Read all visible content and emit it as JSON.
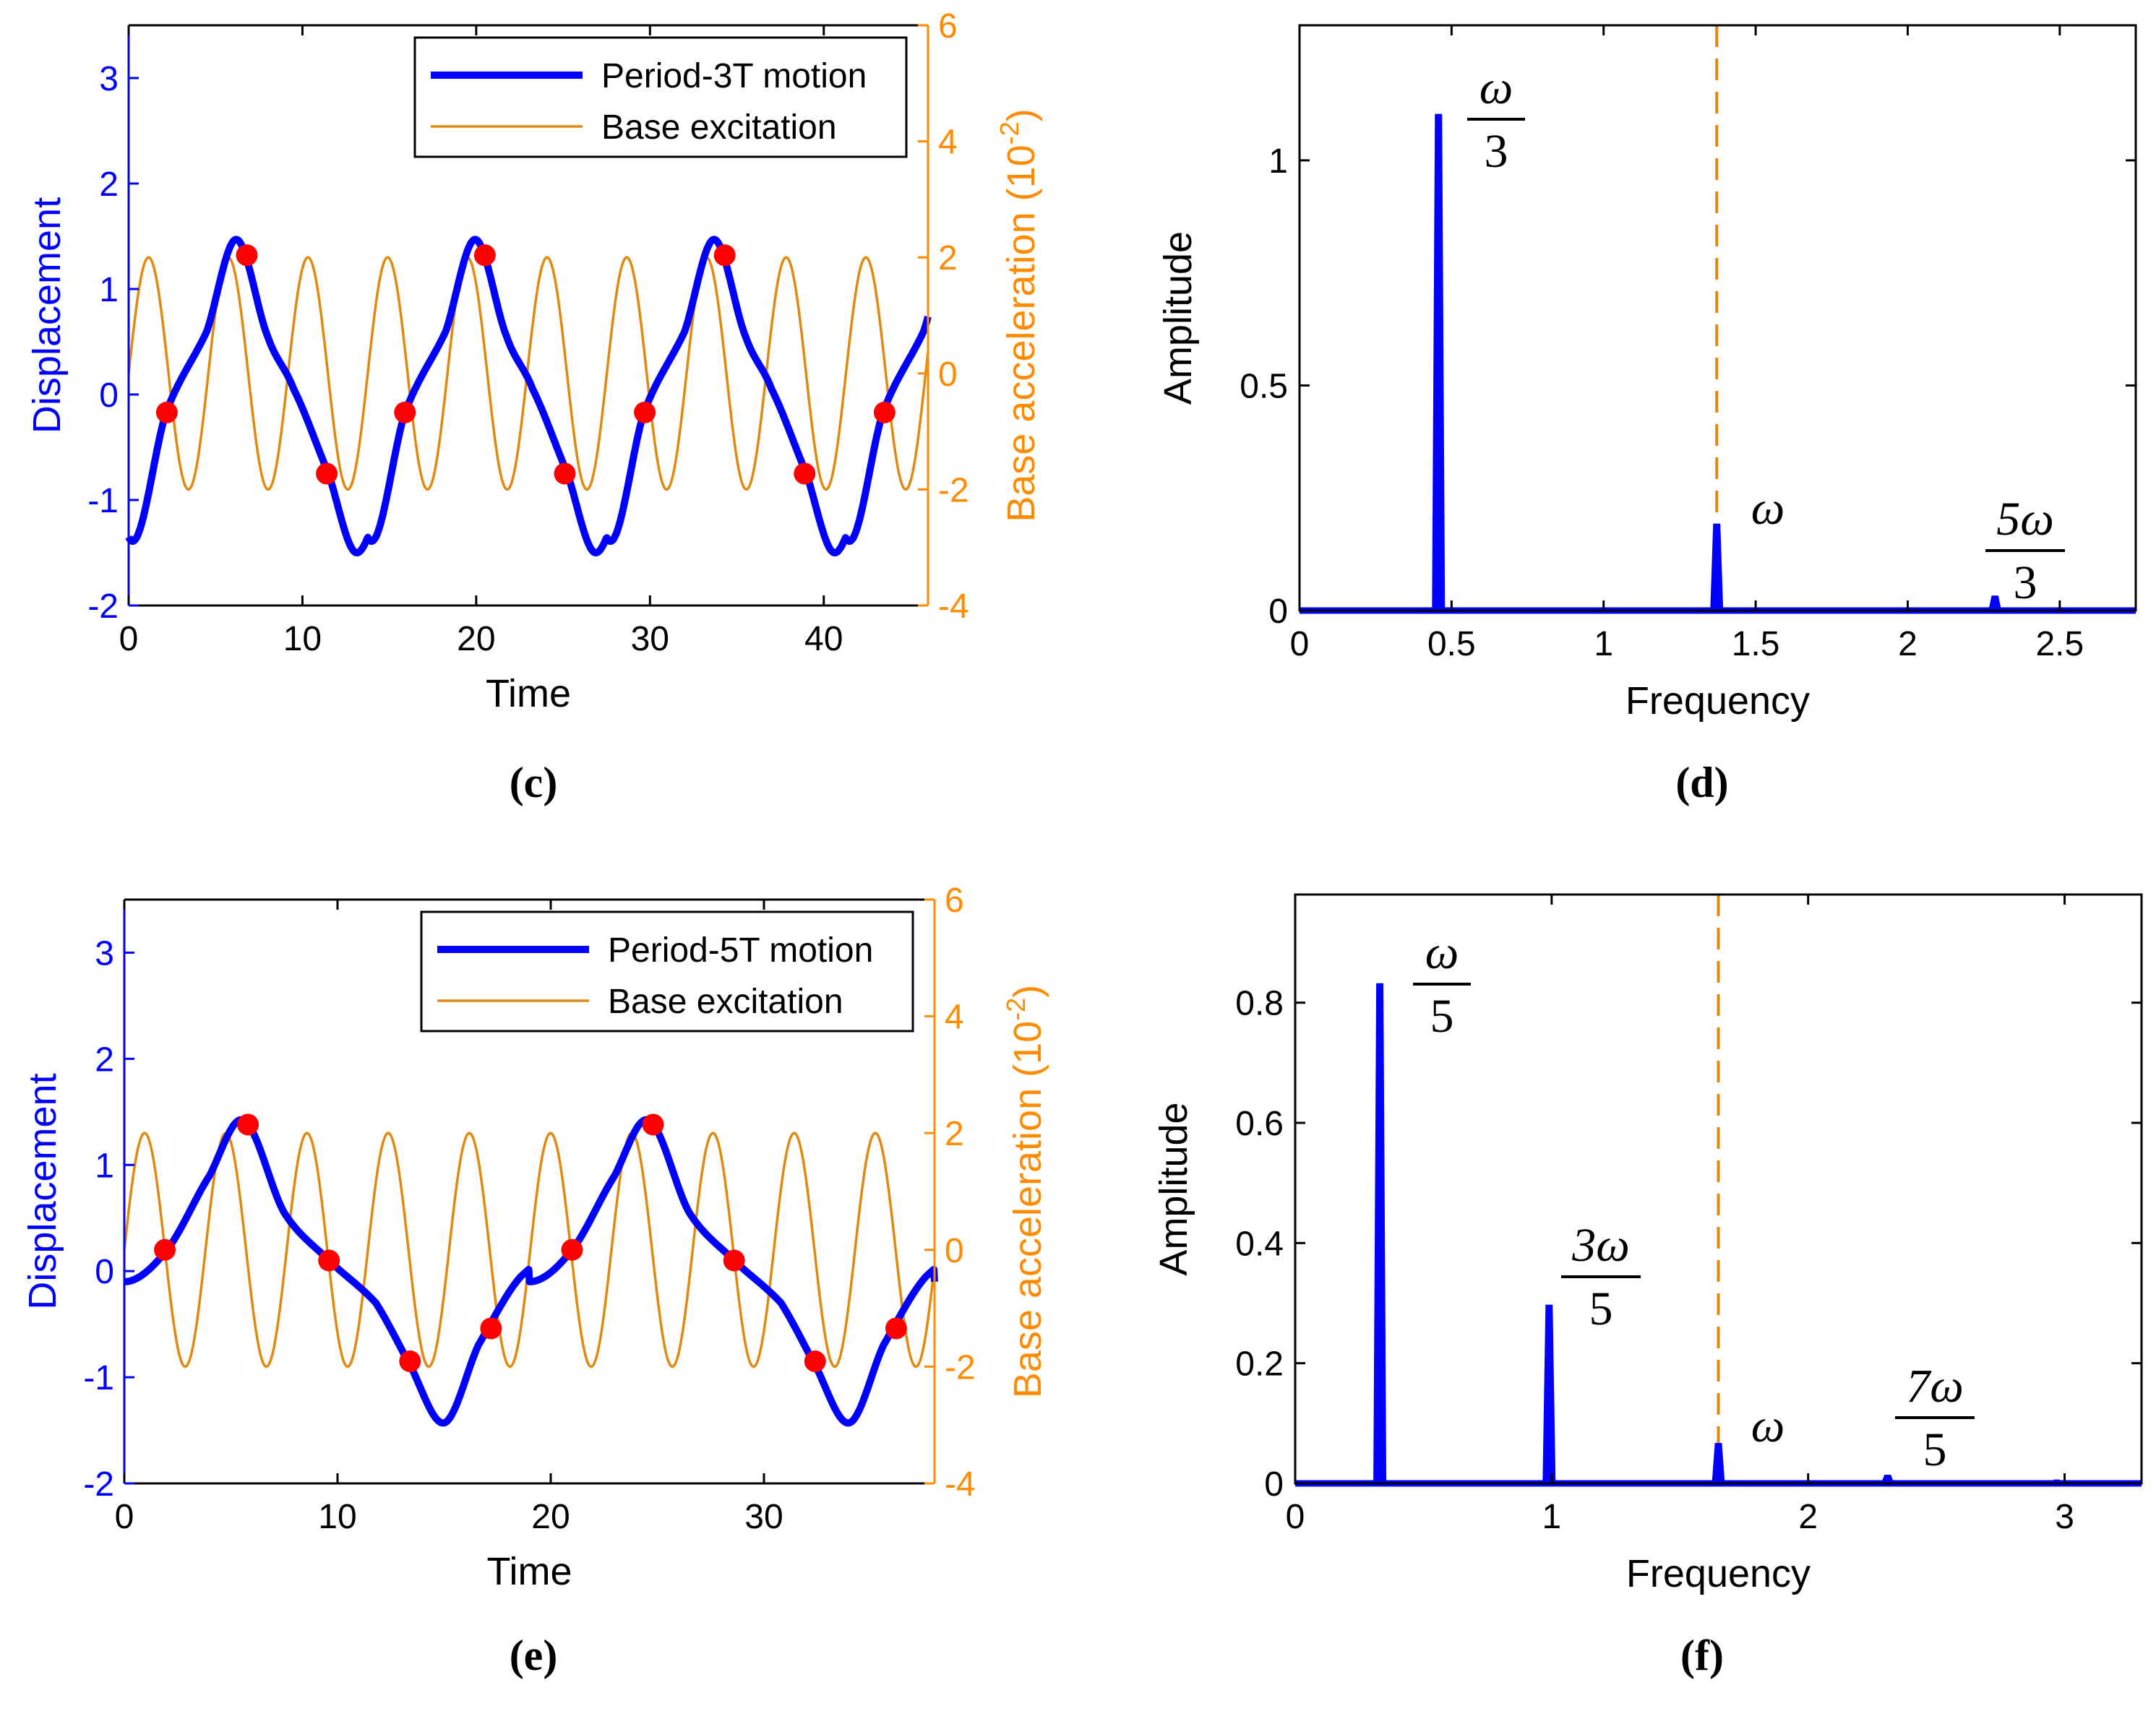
{
  "colors": {
    "displacement": "#0000FF",
    "excitation": "#E08A10",
    "excitation_axis": "#FF8C00",
    "poincare": "#FF0000",
    "dashed_line": "#E08A10",
    "frame": "#000000"
  },
  "chart_data": [
    {
      "id": "c",
      "type": "line",
      "caption": "(c)",
      "xlabel": "Time",
      "ylabel": "Displacement",
      "y2label": "Base acceleration (10",
      "y2label_exp": "-2",
      "y2label_close": ")",
      "xlim": [
        0,
        46
      ],
      "ylim": [
        -2,
        3.5
      ],
      "y2lim": [
        -4,
        6
      ],
      "xticks": [
        0,
        10,
        20,
        30,
        40
      ],
      "yticks": [
        -2,
        -1,
        0,
        1,
        2,
        3
      ],
      "y2ticks": [
        -4,
        -2,
        0,
        2,
        4,
        6
      ],
      "legend": [
        "Period-3T motion",
        "Base excitation"
      ],
      "legend_position": "top-right",
      "excitation": {
        "amplitude": 2.0,
        "omega": 1.37,
        "phase": 0.0
      },
      "displacement_samples": {
        "t": [
          0,
          2.2,
          4.5,
          6.2,
          8.0,
          9.5,
          11.5,
          13.1,
          14.8,
          16.1,
          18.0,
          19.9
        ],
        "y": [
          -1.35,
          -0.15,
          0.6,
          1.47,
          0.55,
          0.05,
          -0.75,
          -1.5,
          -0.85,
          -0.15,
          0.6,
          1.47
        ]
      },
      "period": 13.75,
      "poincare_points": {
        "t": [
          2.2,
          6.8,
          11.4,
          15.9,
          20.5,
          25.1,
          29.7,
          34.3,
          38.9,
          43.5
        ],
        "y": [
          -0.17,
          1.32,
          -0.75,
          -0.17,
          1.32,
          -0.75,
          -0.17,
          1.32,
          -0.75,
          -0.17
        ]
      }
    },
    {
      "id": "d",
      "type": "line",
      "caption": "(d)",
      "xlabel": "Frequency",
      "ylabel": "Amplitude",
      "xlim": [
        0,
        2.75
      ],
      "ylim": [
        0,
        1.3
      ],
      "xticks": [
        0,
        0.5,
        1,
        1.5,
        2,
        2.5
      ],
      "yticks": [
        0,
        0.5,
        1
      ],
      "peaks": [
        {
          "freq": 0.457,
          "amp": 1.1
        },
        {
          "freq": 1.372,
          "amp": 0.19
        },
        {
          "freq": 2.287,
          "amp": 0.03
        }
      ],
      "dashed_x": 1.372,
      "annotations": [
        {
          "num": "ω",
          "den": "3"
        },
        {
          "num": "ω",
          "den": ""
        },
        {
          "num": "5ω",
          "den": "3"
        }
      ]
    },
    {
      "id": "e",
      "type": "line",
      "caption": "(e)",
      "xlabel": "Time",
      "ylabel": "Displacement",
      "y2label": "Base acceleration (10",
      "y2label_exp": "-2",
      "y2label_close": ")",
      "xlim": [
        0,
        38
      ],
      "ylim": [
        -2,
        3.5
      ],
      "y2lim": [
        -4,
        6
      ],
      "xticks": [
        0,
        10,
        20,
        30
      ],
      "yticks": [
        -2,
        -1,
        0,
        1,
        2,
        3
      ],
      "y2ticks": [
        -4,
        -2,
        0,
        2,
        4,
        6
      ],
      "legend": [
        "Period-5T motion",
        "Base excitation"
      ],
      "legend_position": "top-right",
      "excitation": {
        "amplitude": 2.0,
        "omega": 1.65,
        "phase": 0.0
      },
      "displacement_samples": {
        "t": [
          0,
          2.0,
          4.0,
          5.6,
          7.5,
          9.6,
          11.8,
          13.3,
          15.0,
          16.6,
          18.6,
          21.0
        ],
        "y": [
          -0.1,
          0.2,
          0.9,
          1.42,
          0.55,
          0.1,
          -0.3,
          -0.85,
          -1.43,
          -0.7,
          -0.05,
          0.2
        ]
      },
      "period": 19.0,
      "poincare_points": {
        "t": [
          1.9,
          5.8,
          9.6,
          13.4,
          17.2,
          21.0,
          24.8,
          28.6,
          32.4,
          36.2
        ],
        "y": [
          0.2,
          1.38,
          0.1,
          -0.85,
          -0.54,
          0.2,
          1.38,
          0.1,
          -0.85,
          -0.54
        ]
      }
    },
    {
      "id": "f",
      "type": "line",
      "caption": "(f)",
      "xlabel": "Frequency",
      "ylabel": "Amplitude",
      "xlim": [
        0,
        3.3
      ],
      "ylim": [
        0,
        0.98
      ],
      "xticks": [
        0,
        1,
        2,
        3
      ],
      "yticks": [
        0,
        0.2,
        0.4,
        0.6,
        0.8
      ],
      "peaks": [
        {
          "freq": 0.33,
          "amp": 0.83
        },
        {
          "freq": 0.99,
          "amp": 0.295
        },
        {
          "freq": 1.65,
          "amp": 0.065
        },
        {
          "freq": 2.31,
          "amp": 0.012
        },
        {
          "freq": 2.97,
          "amp": 0.004
        }
      ],
      "dashed_x": 1.65,
      "annotations": [
        {
          "num": "ω",
          "den": "5"
        },
        {
          "num": "3ω",
          "den": "5"
        },
        {
          "num": "ω",
          "den": ""
        },
        {
          "num": "7ω",
          "den": "5"
        }
      ]
    }
  ]
}
